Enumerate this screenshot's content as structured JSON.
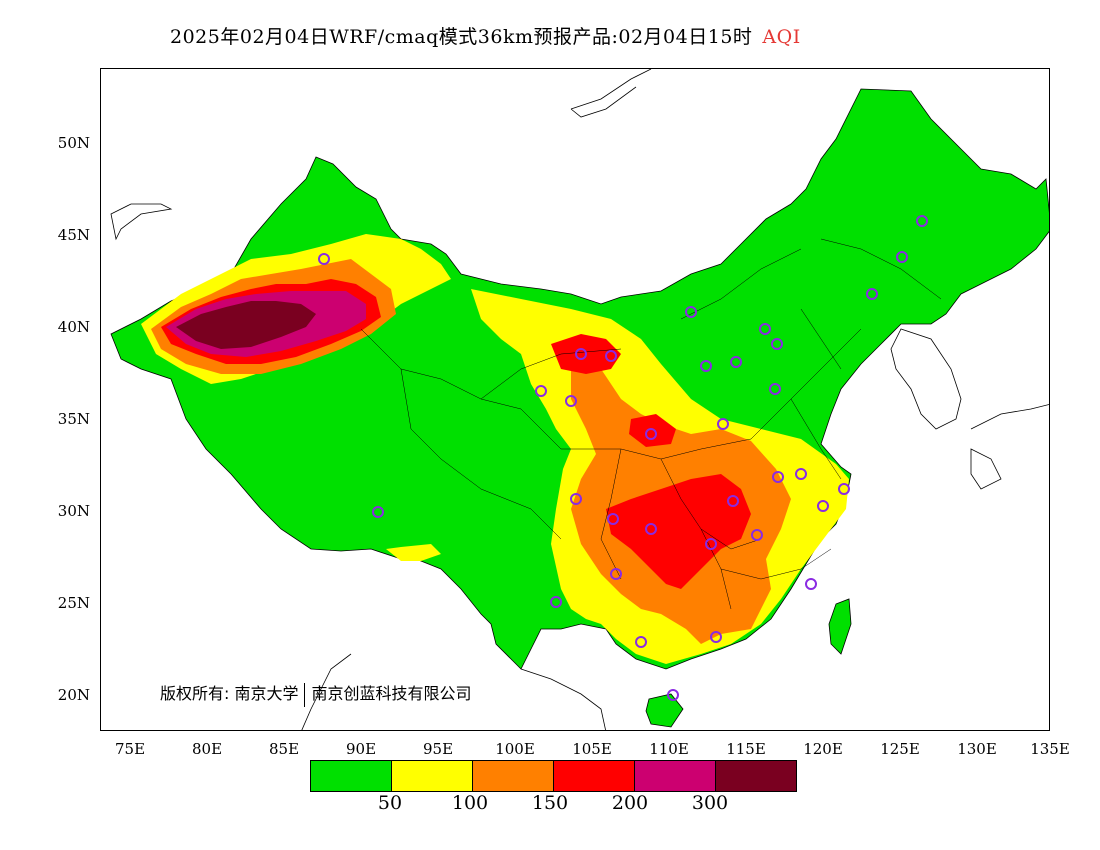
{
  "title": {
    "text": "2025年02月04日WRF/cmaq模式36km预报产品:02月04日15时",
    "variable": "AQI"
  },
  "lat_ticks": [
    "50N",
    "45N",
    "40N",
    "35N",
    "30N",
    "25N",
    "20N"
  ],
  "lon_ticks": [
    "75E",
    "80E",
    "85E",
    "90E",
    "95E",
    "100E",
    "105E",
    "110E",
    "115E",
    "120E",
    "125E",
    "130E",
    "135E"
  ],
  "legend": {
    "colors": [
      "#00e000",
      "#ffff00",
      "#ff8000",
      "#ff0000",
      "#cc0070",
      "#7a0020"
    ],
    "labels": [
      "50",
      "100",
      "150",
      "200",
      "300"
    ]
  },
  "copyright": {
    "part1": "版权所有: 南京大学",
    "part2": "南京创蓝科技有限公司"
  },
  "colors": {
    "ocean": "#ffffff",
    "land_outline": "#000000",
    "station_marker": "#8a2be2"
  }
}
